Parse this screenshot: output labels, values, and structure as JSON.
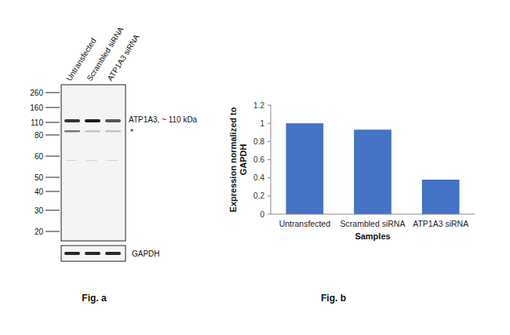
{
  "figure_a": {
    "caption": "Fig. a",
    "lanes": [
      "Untransfected",
      "Scrambled siRNA",
      "ATP1A3 siRNA"
    ],
    "markers": [
      260,
      160,
      110,
      80,
      60,
      50,
      40,
      30,
      20
    ],
    "band_label": "ATP1A3, ~ 110 kDa",
    "nonspecific_label": "*",
    "loading_control": "GAPDH"
  },
  "chart_data": {
    "type": "bar",
    "caption": "Fig. b",
    "x_label": "Samples",
    "y_label": "Expression normalized to GAPDH",
    "categories": [
      "Untransfected",
      "Scrambled siRNA",
      "ATP1A3 siRNA"
    ],
    "values": [
      1,
      0.93,
      0.38
    ],
    "color": "#4472c4",
    "ylim": [
      0,
      1.2
    ],
    "yticks": [
      0,
      0.2,
      0.4,
      0.6,
      0.8,
      1,
      1.2
    ],
    "grid": false
  }
}
